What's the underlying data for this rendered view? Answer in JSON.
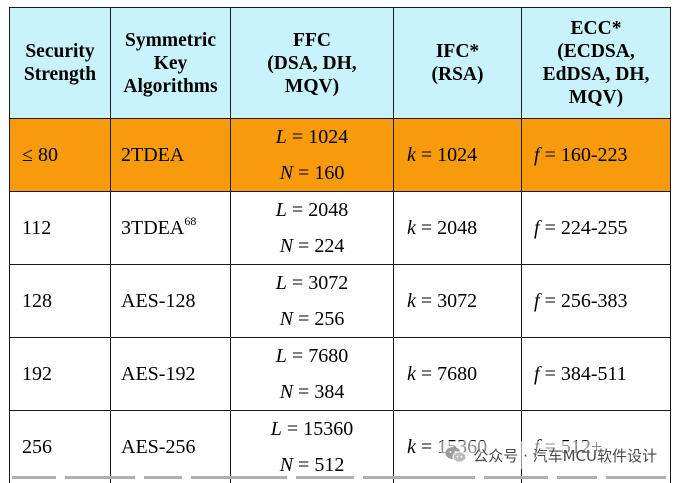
{
  "table": {
    "headers": [
      [
        "Security",
        "Strength"
      ],
      [
        "Symmetric",
        "Key",
        "Algorithms"
      ],
      [
        "FFC",
        "(DSA, DH,",
        "MQV)"
      ],
      [
        "IFC*",
        "(RSA)"
      ],
      [
        "ECC*",
        "(ECDSA,",
        "EdDSA, DH,",
        "MQV)"
      ]
    ],
    "rows": [
      {
        "strength": "≤ 80",
        "algorithm": "2TDEA",
        "footnote": "",
        "ffc_L": "1024",
        "ffc_N": "160",
        "ifc_k": "1024",
        "ecc_f": "160-223",
        "highlighted": true
      },
      {
        "strength": "112",
        "algorithm": "3TDEA",
        "footnote": "68",
        "ffc_L": "2048",
        "ffc_N": "224",
        "ifc_k": "2048",
        "ecc_f": "224-255",
        "highlighted": false
      },
      {
        "strength": "128",
        "algorithm": "AES-128",
        "footnote": "",
        "ffc_L": "3072",
        "ffc_N": "256",
        "ifc_k": "3072",
        "ecc_f": "256-383",
        "highlighted": false
      },
      {
        "strength": "192",
        "algorithm": "AES-192",
        "footnote": "",
        "ffc_L": "7680",
        "ffc_N": "384",
        "ifc_k": "7680",
        "ecc_f": "384-511",
        "highlighted": false
      },
      {
        "strength": "256",
        "algorithm": "AES-256",
        "footnote": "",
        "ffc_L": "15360",
        "ffc_N": "512",
        "ifc_k": "15360",
        "ecc_f": "512+",
        "highlighted": false
      }
    ],
    "symbols": {
      "L": "L",
      "N": "N",
      "k": "k",
      "f": "f",
      "eq": " = "
    },
    "highlight_color": "#f79a0c",
    "header_color": "#c9f3fb"
  },
  "watermark": {
    "text": "公众号 · 汽车MCU软件设计",
    "icon": "wechat-logo-icon"
  }
}
